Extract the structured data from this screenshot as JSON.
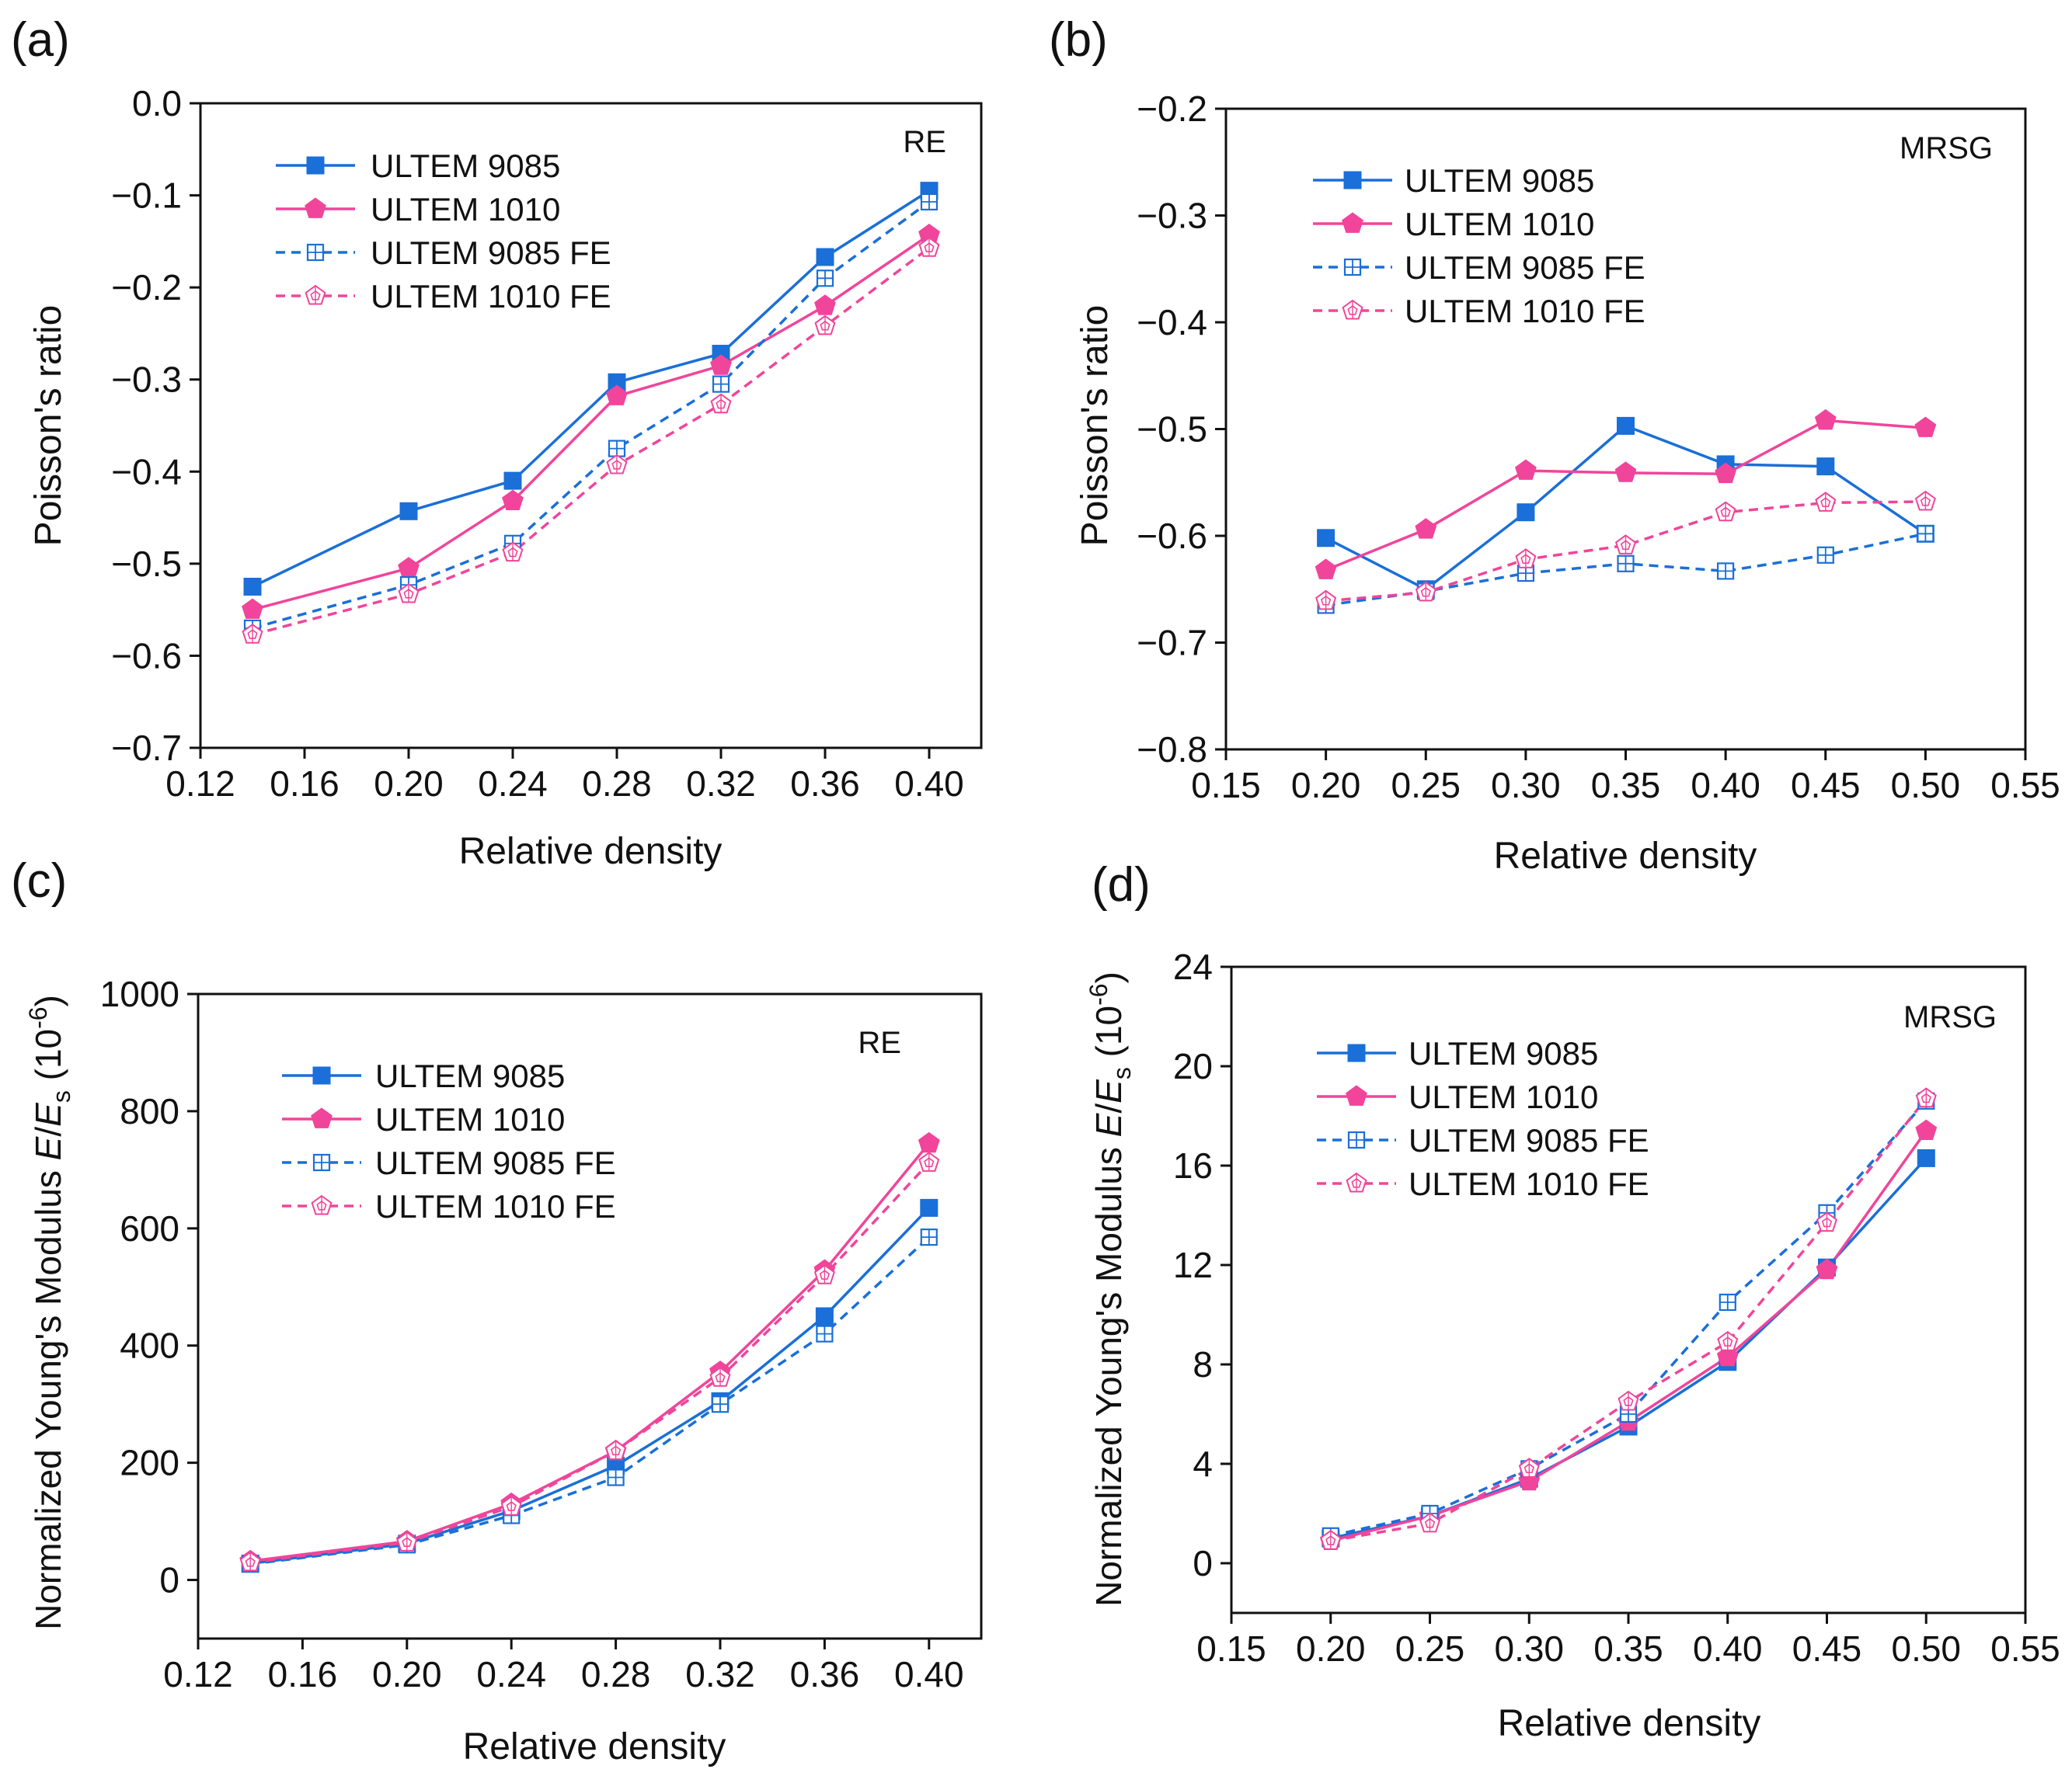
{
  "figure_label": "Four-panel comparison of ULTEM auxetic lattices",
  "colors": {
    "blue": "#1a6fd8",
    "pink": "#f0459a",
    "axis": "#111111"
  },
  "chart_data": [
    {
      "type": "line",
      "panel": "(a)",
      "annotation": "RE",
      "xlabel": "Relative density",
      "ylabel": "Poisson's ratio",
      "xlim": [
        0.12,
        0.42
      ],
      "ylim": [
        -0.7,
        0.0
      ],
      "xticks": [
        "0.12",
        "0.16",
        "0.20",
        "0.24",
        "0.28",
        "0.32",
        "0.36",
        "0.40"
      ],
      "yticks": [
        "0.0",
        "−0.1",
        "−0.2",
        "−0.3",
        "−0.4",
        "−0.5",
        "−0.6",
        "−0.7"
      ],
      "x": [
        0.14,
        0.2,
        0.24,
        0.28,
        0.32,
        0.36,
        0.4
      ],
      "series": [
        {
          "name": "ULTEM 9085",
          "color": "#1a6fd8",
          "marker": "square",
          "dashed": false,
          "values": [
            -0.525,
            -0.443,
            -0.41,
            -0.303,
            -0.272,
            -0.167,
            -0.095
          ]
        },
        {
          "name": "ULTEM 1010",
          "color": "#f0459a",
          "marker": "pentagon",
          "dashed": false,
          "values": [
            -0.55,
            -0.505,
            -0.432,
            -0.318,
            -0.285,
            -0.22,
            -0.143
          ]
        },
        {
          "name": "ULTEM 9085 FE",
          "color": "#1a6fd8",
          "marker": "square-open",
          "dashed": true,
          "values": [
            -0.57,
            -0.523,
            -0.478,
            -0.375,
            -0.305,
            -0.19,
            -0.107
          ]
        },
        {
          "name": "ULTEM 1010 FE",
          "color": "#f0459a",
          "marker": "pentagon-open",
          "dashed": true,
          "values": [
            -0.577,
            -0.533,
            -0.488,
            -0.393,
            -0.327,
            -0.242,
            -0.157
          ]
        }
      ]
    },
    {
      "type": "line",
      "panel": "(b)",
      "annotation": "MRSG",
      "xlabel": "Relative density",
      "ylabel": "Poisson's ratio",
      "xlim": [
        0.15,
        0.55
      ],
      "ylim": [
        -0.8,
        -0.2
      ],
      "xticks": [
        "0.15",
        "0.20",
        "0.25",
        "0.30",
        "0.35",
        "0.40",
        "0.45",
        "0.50",
        "0.55"
      ],
      "yticks": [
        "−0.2",
        "−0.3",
        "−0.4",
        "−0.5",
        "−0.6",
        "−0.7",
        "−0.8"
      ],
      "x": [
        0.2,
        0.25,
        0.3,
        0.35,
        0.4,
        0.45,
        0.5
      ],
      "series": [
        {
          "name": "ULTEM 9085",
          "color": "#1a6fd8",
          "marker": "square",
          "dashed": false,
          "values": [
            -0.602,
            -0.65,
            -0.578,
            -0.497,
            -0.533,
            -0.535,
            -0.598
          ]
        },
        {
          "name": "ULTEM 1010",
          "color": "#f0459a",
          "marker": "pentagon",
          "dashed": false,
          "values": [
            -0.632,
            -0.594,
            -0.539,
            -0.541,
            -0.542,
            -0.492,
            -0.499
          ]
        },
        {
          "name": "ULTEM 9085 FE",
          "color": "#1a6fd8",
          "marker": "square-open",
          "dashed": true,
          "values": [
            -0.665,
            -0.652,
            -0.635,
            -0.626,
            -0.633,
            -0.618,
            -0.598
          ]
        },
        {
          "name": "ULTEM 1010 FE",
          "color": "#f0459a",
          "marker": "pentagon-open",
          "dashed": true,
          "values": [
            -0.661,
            -0.653,
            -0.622,
            -0.609,
            -0.578,
            -0.569,
            -0.568
          ]
        }
      ]
    },
    {
      "type": "line",
      "panel": "(c)",
      "annotation": "RE",
      "xlabel": "Relative density",
      "ylabel_main": "Normalized Young's Modulus ",
      "ylabel_e": "E",
      "ylabel_slash": "/",
      "ylabel_es": "E",
      "ylabel_sub": "s",
      "ylabel_paren": " (10",
      "ylabel_exp": "-6",
      "ylabel_close": ")",
      "xlim": [
        0.12,
        0.42
      ],
      "ylim": [
        -100,
        1000
      ],
      "xticks": [
        "0.12",
        "0.16",
        "0.20",
        "0.24",
        "0.28",
        "0.32",
        "0.36",
        "0.40"
      ],
      "yticks": [
        "0",
        "200",
        "400",
        "600",
        "800",
        "1000"
      ],
      "x": [
        0.14,
        0.2,
        0.24,
        0.28,
        0.32,
        0.36,
        0.4
      ],
      "series": [
        {
          "name": "ULTEM 9085",
          "color": "#1a6fd8",
          "marker": "square",
          "dashed": false,
          "values": [
            28,
            62,
            118,
            195,
            305,
            450,
            635
          ]
        },
        {
          "name": "ULTEM 1010",
          "color": "#f0459a",
          "marker": "pentagon",
          "dashed": false,
          "values": [
            32,
            66,
            130,
            220,
            355,
            528,
            745
          ]
        },
        {
          "name": "ULTEM 9085 FE",
          "color": "#1a6fd8",
          "marker": "square-open",
          "dashed": true,
          "values": [
            27,
            60,
            110,
            175,
            300,
            420,
            585
          ]
        },
        {
          "name": "ULTEM 1010 FE",
          "color": "#f0459a",
          "marker": "pentagon-open",
          "dashed": true,
          "values": [
            30,
            64,
            125,
            220,
            345,
            520,
            712
          ]
        }
      ]
    },
    {
      "type": "line",
      "panel": "(d)",
      "annotation": "MRSG",
      "xlabel": "Relative density",
      "ylabel_main": "Normalized Young's Modulus ",
      "ylabel_e": "E",
      "ylabel_slash": "/",
      "ylabel_es": "E",
      "ylabel_sub": "s",
      "ylabel_paren": " (10",
      "ylabel_exp": "-6",
      "ylabel_close": ")",
      "xlim": [
        0.15,
        0.55
      ],
      "ylim": [
        -2,
        24
      ],
      "xticks": [
        "0.15",
        "0.20",
        "0.25",
        "0.30",
        "0.35",
        "0.40",
        "0.45",
        "0.50",
        "0.55"
      ],
      "yticks": [
        "0",
        "4",
        "8",
        "12",
        "16",
        "20",
        "24"
      ],
      "x": [
        0.2,
        0.25,
        0.3,
        0.35,
        0.4,
        0.45,
        0.5
      ],
      "series": [
        {
          "name": "ULTEM 9085",
          "color": "#1a6fd8",
          "marker": "square",
          "dashed": false,
          "values": [
            1.0,
            1.9,
            3.4,
            5.5,
            8.1,
            11.9,
            16.3
          ]
        },
        {
          "name": "ULTEM 1010",
          "color": "#f0459a",
          "marker": "pentagon",
          "dashed": false,
          "values": [
            0.9,
            1.9,
            3.3,
            5.7,
            8.3,
            11.8,
            17.4
          ]
        },
        {
          "name": "ULTEM 9085 FE",
          "color": "#1a6fd8",
          "marker": "square-open",
          "dashed": true,
          "values": [
            1.1,
            2.0,
            3.8,
            6.0,
            10.5,
            14.1,
            18.6
          ]
        },
        {
          "name": "ULTEM 1010 FE",
          "color": "#f0459a",
          "marker": "pentagon-open",
          "dashed": true,
          "values": [
            0.9,
            1.6,
            3.8,
            6.5,
            8.9,
            13.7,
            18.7
          ]
        }
      ]
    }
  ]
}
